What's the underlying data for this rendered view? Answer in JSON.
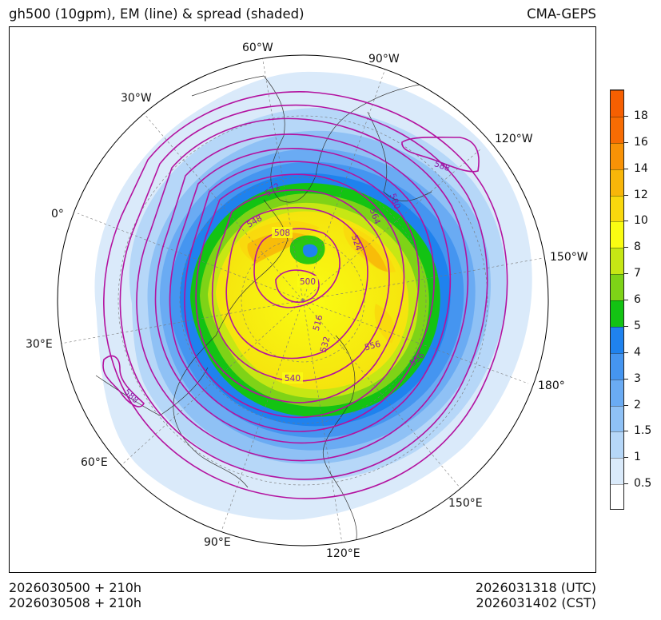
{
  "header": {
    "title": "gh500 (10gpm), EM (line) & spread (shaded)",
    "model": "CMA-GEPS"
  },
  "footer": {
    "init_utc": "2026030500 + 210h",
    "init_cst": "2026030508 + 210h",
    "valid_utc": "2026031318 (UTC)",
    "valid_cst": "2026031402 (CST)"
  },
  "map": {
    "projection": "north-polar-stereographic",
    "longitude_labels": {
      "lon_60w": "60°W",
      "lon_90w": "90°W",
      "lon_120w": "120°W",
      "lon_150w": "150°W",
      "lon_180": "180°",
      "lon_150e": "150°E",
      "lon_120e": "120°E",
      "lon_90e": "90°E",
      "lon_60e": "60°E",
      "lon_30e": "30°E",
      "lon_0": "0°",
      "lon_30w": "30°W"
    },
    "contour_labels": {
      "c500": "500",
      "c508": "508",
      "c516": "516",
      "c524": "524",
      "c532": "532",
      "c540": "540",
      "c548": "548",
      "c556a": "556",
      "c556b": "556",
      "c564": "564",
      "c572": "572",
      "c580": "580",
      "c588a": "588",
      "c588b": "588"
    },
    "colors": {
      "contour": "#b3129f",
      "contour_label": "#8a1aa6",
      "coast": "#333333",
      "graticule": "#777777"
    }
  },
  "colorbar": {
    "labels": [
      "0.5",
      "1",
      "1.5",
      "2",
      "3",
      "4",
      "5",
      "6",
      "7",
      "8",
      "10",
      "12",
      "14",
      "16",
      "18"
    ],
    "colors": [
      "#ffffff",
      "#daeafa",
      "#b6d7f8",
      "#8fc1f5",
      "#6aabf3",
      "#4595f0",
      "#1f82ee",
      "#13c313",
      "#7ed317",
      "#c6e714",
      "#fafc12",
      "#f9d80d",
      "#f8b609",
      "#f89206",
      "#f76c03",
      "#f65f01"
    ]
  }
}
